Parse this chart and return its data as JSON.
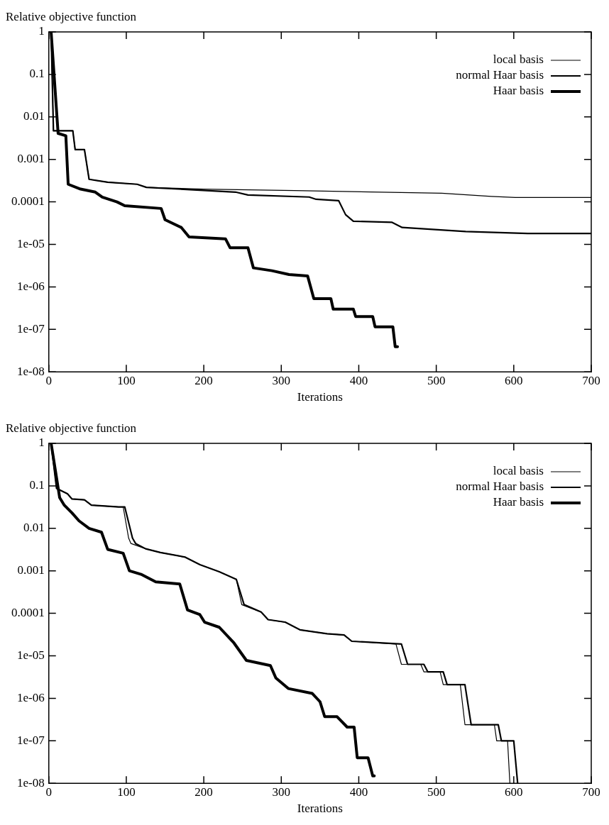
{
  "chart_data": [
    {
      "type": "line",
      "ylabel": "Relative objective function",
      "xlabel": "Iterations",
      "log": "y",
      "grid": false,
      "legend": "top right",
      "xlim": [
        0,
        700
      ],
      "xticks": [
        0,
        100,
        200,
        300,
        400,
        500,
        600,
        700
      ],
      "ylim": [
        1e-08,
        1
      ],
      "yticks": [
        1,
        0.1,
        0.01,
        0.001,
        0.0001,
        {
          "value": 1e-05,
          "label": "1e-05"
        },
        {
          "value": 1e-06,
          "label": "1e-06"
        },
        {
          "value": 1e-07,
          "label": "1e-07"
        },
        {
          "value": 1e-08,
          "label": "1e-08"
        }
      ],
      "series": [
        {
          "name": "local basis",
          "color": "#000000",
          "x": [
            3,
            6,
            31,
            34,
            46,
            52,
            76,
            114,
            126,
            200,
            317,
            507,
            571,
            602,
            700
          ],
          "values": [
            1,
            0.0047,
            0.0047,
            0.0017,
            0.0017,
            0.00034,
            0.00029,
            0.00026,
            0.00022,
            0.0002,
            0.000185,
            0.00016,
            0.000135,
            0.000127,
            0.000127
          ]
        },
        {
          "name": "normal Haar basis",
          "color": "#000000",
          "x": [
            3,
            6,
            31,
            34,
            46,
            52,
            76,
            114,
            126,
            241,
            257,
            336,
            345,
            374,
            383,
            393,
            443,
            456,
            538,
            618,
            700
          ],
          "values": [
            1,
            0.0047,
            0.0047,
            0.0017,
            0.0017,
            0.00034,
            0.00029,
            0.00026,
            0.00022,
            0.00017,
            0.000145,
            0.00013,
            0.000115,
            0.000107,
            5e-05,
            3.5e-05,
            3.3e-05,
            2.5e-05,
            2e-05,
            1.8e-05,
            1.8e-05
          ]
        },
        {
          "name": "Haar basis",
          "color": "#000000",
          "x": [
            3,
            12,
            22,
            25,
            41,
            60,
            69,
            88,
            98,
            145,
            150,
            171,
            181,
            228,
            234,
            257,
            264,
            288,
            310,
            334,
            342,
            364,
            367,
            393,
            396,
            418,
            421,
            444,
            447,
            450
          ],
          "values": [
            1,
            0.0041,
            0.0036,
            0.00026,
            0.0002,
            0.00017,
            0.00013,
            0.0001,
            8.1e-05,
            7e-05,
            3.8e-05,
            2.5e-05,
            1.5e-05,
            1.35e-05,
            8.3e-06,
            8.3e-06,
            2.8e-06,
            2.4e-06,
            1.95e-06,
            1.8e-06,
            5.3e-07,
            5.3e-07,
            3e-07,
            3e-07,
            2e-07,
            2e-07,
            1.15e-07,
            1.15e-07,
            3.9e-08,
            3.9e-08
          ]
        }
      ]
    },
    {
      "type": "line",
      "ylabel": "Relative objective function",
      "xlabel": "Iterations",
      "log": "y",
      "grid": false,
      "legend": "top right",
      "xlim": [
        0,
        700
      ],
      "xticks": [
        0,
        100,
        200,
        300,
        400,
        500,
        600,
        700
      ],
      "ylim": [
        1e-08,
        1
      ],
      "yticks": [
        1,
        0.1,
        0.01,
        0.001,
        0.0001,
        {
          "value": 1e-05,
          "label": "1e-05"
        },
        {
          "value": 1e-06,
          "label": "1e-06"
        },
        {
          "value": 1e-07,
          "label": "1e-07"
        },
        {
          "value": 1e-08,
          "label": "1e-08"
        }
      ],
      "series": [
        {
          "name": "local basis",
          "color": "#000000",
          "x": [
            3,
            10,
            24,
            30,
            46,
            55,
            90,
            96,
            103,
            106,
            125,
            144,
            176,
            195,
            220,
            242,
            249,
            274,
            283,
            305,
            324,
            359,
            381,
            391,
            448,
            455,
            480,
            484,
            505,
            509,
            531,
            537,
            575,
            578,
            592,
            595
          ],
          "values": [
            1,
            0.087,
            0.065,
            0.049,
            0.047,
            0.035,
            0.032,
            0.032,
            0.0059,
            0.0044,
            0.0033,
            0.0027,
            0.0021,
            0.0014,
            0.00095,
            0.00063,
            0.00016,
            0.000107,
            7.1e-05,
            6.2e-05,
            4.1e-05,
            3.3e-05,
            3.1e-05,
            2.2e-05,
            1.9e-05,
            6.3e-06,
            6.3e-06,
            4.2e-06,
            4.2e-06,
            2.1e-06,
            2.1e-06,
            2.4e-07,
            2.4e-07,
            1e-07,
            1e-07,
            1e-08
          ]
        },
        {
          "name": "normal Haar basis",
          "color": "#000000",
          "x": [
            3,
            10,
            24,
            30,
            46,
            55,
            90,
            98,
            108,
            112,
            125,
            144,
            176,
            195,
            220,
            242,
            252,
            274,
            283,
            305,
            324,
            359,
            381,
            391,
            455,
            463,
            484,
            489,
            509,
            514,
            537,
            545,
            580,
            584,
            600,
            605
          ],
          "values": [
            1,
            0.087,
            0.065,
            0.049,
            0.047,
            0.035,
            0.032,
            0.032,
            0.0059,
            0.0044,
            0.0033,
            0.0027,
            0.0021,
            0.0014,
            0.00095,
            0.00063,
            0.00016,
            0.000107,
            7.1e-05,
            6.2e-05,
            4.1e-05,
            3.3e-05,
            3.1e-05,
            2.2e-05,
            1.9e-05,
            6.3e-06,
            6.3e-06,
            4.2e-06,
            4.2e-06,
            2.1e-06,
            2.1e-06,
            2.4e-07,
            2.4e-07,
            1e-07,
            1e-07,
            1e-08
          ]
        },
        {
          "name": "Haar basis",
          "color": "#000000",
          "x": [
            3,
            14,
            20,
            30,
            39,
            52,
            68,
            76,
            96,
            104,
            119,
            138,
            169,
            179,
            195,
            201,
            220,
            239,
            255,
            286,
            293,
            309,
            340,
            350,
            356,
            372,
            385,
            394,
            398,
            412,
            418,
            420
          ],
          "values": [
            1,
            0.053,
            0.035,
            0.023,
            0.015,
            0.01,
            0.0081,
            0.0032,
            0.0026,
            0.001,
            0.00083,
            0.00055,
            0.00049,
            0.00012,
            9.3e-05,
            6.2e-05,
            4.7e-05,
            2e-05,
            7.8e-06,
            5.9e-06,
            3e-06,
            1.7e-06,
            1.3e-06,
            8.3e-07,
            3.7e-07,
            3.7e-07,
            2.1e-07,
            2.1e-07,
            4e-08,
            4e-08,
            1.5e-08,
            1.5e-08
          ]
        }
      ]
    }
  ]
}
